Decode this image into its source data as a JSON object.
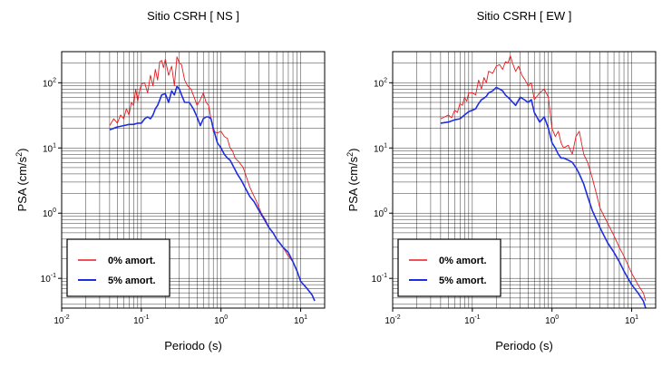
{
  "chart_data": [
    {
      "type": "line",
      "title": "Sitio CSRH [ NS ]",
      "xlabel": "Periodo (s)",
      "ylabel": "PSA (cm/s2)",
      "ylabel_base": "PSA (cm/s",
      "ylabel_sup": "2",
      "ylabel_tail": ")",
      "x_scale": "log",
      "y_scale": "log",
      "xlim": [
        0.01,
        20
      ],
      "ylim": [
        0.035,
        300
      ],
      "grid": true,
      "legend_position": "bottom-left",
      "x_ticks": [
        {
          "base": "10",
          "exp": "-2",
          "value": 0.01
        },
        {
          "base": "10",
          "exp": "-1",
          "value": 0.1
        },
        {
          "base": "10",
          "exp": "0",
          "value": 1
        },
        {
          "base": "10",
          "exp": "1",
          "value": 10
        }
      ],
      "y_ticks": [
        {
          "base": "10",
          "exp": "-1",
          "value": 0.1
        },
        {
          "base": "10",
          "exp": "0",
          "value": 1
        },
        {
          "base": "10",
          "exp": "1",
          "value": 10
        },
        {
          "base": "10",
          "exp": "2",
          "value": 100
        }
      ],
      "series": [
        {
          "name": "0% amort.",
          "color": "#e8191e",
          "x": [
            0.04,
            0.045,
            0.05,
            0.055,
            0.06,
            0.065,
            0.07,
            0.075,
            0.08,
            0.085,
            0.09,
            0.095,
            0.1,
            0.11,
            0.12,
            0.13,
            0.14,
            0.15,
            0.16,
            0.17,
            0.18,
            0.19,
            0.2,
            0.22,
            0.24,
            0.26,
            0.28,
            0.3,
            0.32,
            0.35,
            0.38,
            0.42,
            0.46,
            0.5,
            0.55,
            0.6,
            0.65,
            0.7,
            0.75,
            0.8,
            0.9,
            1.0,
            1.1,
            1.2,
            1.3,
            1.4,
            1.5,
            1.7,
            1.9,
            2.1,
            2.3,
            2.5,
            2.8,
            3.2,
            3.6,
            4.0,
            4.5,
            5.0,
            6.0,
            7.0,
            8.0,
            9.0,
            10.0,
            12.0,
            14.0,
            15.0
          ],
          "y": [
            22,
            28,
            24,
            32,
            28,
            40,
            32,
            50,
            45,
            80,
            52,
            75,
            95,
            100,
            70,
            130,
            90,
            160,
            110,
            210,
            220,
            170,
            230,
            130,
            180,
            90,
            250,
            200,
            190,
            110,
            90,
            80,
            60,
            45,
            55,
            70,
            50,
            45,
            28,
            18,
            17,
            18,
            15,
            14,
            10,
            9,
            7,
            6,
            5,
            3.5,
            2.5,
            2.0,
            1.5,
            1.0,
            0.8,
            0.6,
            0.5,
            0.4,
            0.3,
            0.22,
            0.18,
            0.13,
            0.09,
            0.07,
            0.055,
            0.045
          ]
        },
        {
          "name": "5% amort.",
          "color": "#1f2ee0",
          "x": [
            0.04,
            0.05,
            0.06,
            0.07,
            0.08,
            0.09,
            0.1,
            0.11,
            0.12,
            0.13,
            0.14,
            0.15,
            0.16,
            0.18,
            0.2,
            0.22,
            0.24,
            0.26,
            0.28,
            0.3,
            0.32,
            0.35,
            0.4,
            0.45,
            0.5,
            0.55,
            0.6,
            0.65,
            0.7,
            0.75,
            0.8,
            0.9,
            1.0,
            1.1,
            1.2,
            1.3,
            1.4,
            1.6,
            1.8,
            2.0,
            2.3,
            2.6,
            3.0,
            3.5,
            4.0,
            4.5,
            5.0,
            6.0,
            7.0,
            8.0,
            9.0,
            10.0,
            12.0,
            14.0,
            15.0
          ],
          "y": [
            19,
            21,
            22,
            23,
            23,
            24,
            24,
            28,
            30,
            28,
            32,
            40,
            45,
            65,
            68,
            50,
            75,
            65,
            88,
            80,
            65,
            50,
            50,
            40,
            30,
            22,
            28,
            30,
            30,
            28,
            20,
            12,
            10,
            8,
            7,
            6.5,
            5.5,
            4.0,
            3.2,
            2.5,
            1.8,
            1.5,
            1.1,
            0.8,
            0.6,
            0.5,
            0.4,
            0.3,
            0.25,
            0.18,
            0.13,
            0.09,
            0.07,
            0.055,
            0.045
          ]
        }
      ]
    },
    {
      "type": "line",
      "title": "Sitio CSRH [ EW ]",
      "xlabel": "Periodo (s)",
      "ylabel": "PSA (cm/s2)",
      "ylabel_base": "PSA (cm/s",
      "ylabel_sup": "2",
      "ylabel_tail": ")",
      "x_scale": "log",
      "y_scale": "log",
      "xlim": [
        0.01,
        20
      ],
      "ylim": [
        0.035,
        300
      ],
      "grid": true,
      "legend_position": "bottom-left",
      "x_ticks": [
        {
          "base": "10",
          "exp": "-2",
          "value": 0.01
        },
        {
          "base": "10",
          "exp": "-1",
          "value": 0.1
        },
        {
          "base": "10",
          "exp": "0",
          "value": 1
        },
        {
          "base": "10",
          "exp": "1",
          "value": 10
        }
      ],
      "y_ticks": [
        {
          "base": "10",
          "exp": "-1",
          "value": 0.1
        },
        {
          "base": "10",
          "exp": "0",
          "value": 1
        },
        {
          "base": "10",
          "exp": "1",
          "value": 10
        },
        {
          "base": "10",
          "exp": "2",
          "value": 100
        }
      ],
      "series": [
        {
          "name": "0% amort.",
          "color": "#e8191e",
          "x": [
            0.04,
            0.045,
            0.05,
            0.055,
            0.06,
            0.065,
            0.07,
            0.075,
            0.08,
            0.085,
            0.09,
            0.1,
            0.11,
            0.12,
            0.13,
            0.14,
            0.15,
            0.16,
            0.18,
            0.2,
            0.22,
            0.24,
            0.26,
            0.28,
            0.3,
            0.32,
            0.35,
            0.38,
            0.42,
            0.46,
            0.5,
            0.55,
            0.6,
            0.7,
            0.8,
            0.9,
            1.0,
            1.1,
            1.2,
            1.3,
            1.4,
            1.6,
            1.8,
            2.0,
            2.2,
            2.5,
            2.8,
            3.2,
            3.6,
            4.0,
            4.5,
            5.0,
            6.0,
            7.0,
            8.0,
            9.0,
            10.0,
            12.0,
            14.0,
            15.0
          ],
          "y": [
            28,
            30,
            32,
            29,
            38,
            35,
            48,
            45,
            60,
            52,
            70,
            70,
            65,
            110,
            80,
            120,
            100,
            150,
            140,
            180,
            190,
            160,
            210,
            200,
            260,
            200,
            150,
            180,
            130,
            110,
            90,
            100,
            55,
            70,
            80,
            60,
            20,
            15,
            18,
            12,
            10,
            11,
            8,
            15,
            18,
            8,
            6,
            3.5,
            2.0,
            1.2,
            0.9,
            0.7,
            0.45,
            0.3,
            0.22,
            0.16,
            0.12,
            0.08,
            0.06,
            0.045
          ]
        },
        {
          "name": "5% amort.",
          "color": "#1f2ee0",
          "x": [
            0.04,
            0.05,
            0.06,
            0.07,
            0.08,
            0.09,
            0.1,
            0.11,
            0.12,
            0.13,
            0.14,
            0.15,
            0.16,
            0.18,
            0.2,
            0.22,
            0.24,
            0.26,
            0.28,
            0.3,
            0.35,
            0.4,
            0.45,
            0.5,
            0.55,
            0.6,
            0.7,
            0.8,
            0.9,
            1.0,
            1.1,
            1.2,
            1.3,
            1.4,
            1.6,
            1.8,
            2.0,
            2.2,
            2.5,
            2.8,
            3.2,
            3.6,
            4.0,
            4.5,
            5.0,
            6.0,
            7.0,
            8.0,
            9.0,
            10.0,
            12.0,
            14.0,
            15.0
          ],
          "y": [
            24,
            25,
            27,
            28,
            32,
            36,
            38,
            40,
            48,
            55,
            58,
            62,
            70,
            75,
            85,
            80,
            75,
            65,
            60,
            55,
            45,
            60,
            55,
            50,
            55,
            35,
            25,
            30,
            20,
            12,
            10,
            8,
            7,
            7,
            6.5,
            6,
            5,
            4.0,
            2.8,
            1.8,
            1.1,
            0.8,
            0.6,
            0.45,
            0.35,
            0.25,
            0.18,
            0.13,
            0.1,
            0.08,
            0.06,
            0.045,
            0.035
          ]
        }
      ]
    }
  ]
}
